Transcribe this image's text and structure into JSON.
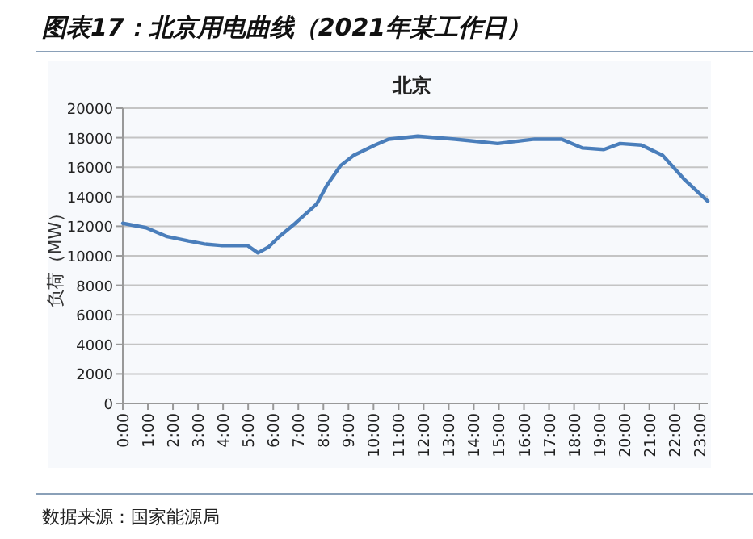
{
  "chart_data": {
    "type": "line",
    "title": "图表17：北京用电曲线（2021年某工作日）",
    "subtitle": "北京",
    "ylabel": "负荷（MW）",
    "x": [
      0,
      0.93,
      1.77,
      2.62,
      3.26,
      3.9,
      4.97,
      5.39,
      5.82,
      6.24,
      6.88,
      7.73,
      8.15,
      8.68,
      9.21,
      10.06,
      10.6,
      11.76,
      13.25,
      14.95,
      16.43,
      17.5,
      18.34,
      19.19,
      19.83,
      20.68,
      21.53,
      22.38,
      23.33
    ],
    "values": [
      12200,
      11900,
      11300,
      11000,
      10800,
      10700,
      10700,
      10200,
      10600,
      11300,
      12200,
      13500,
      14800,
      16100,
      16800,
      17500,
      17900,
      18100,
      17900,
      17600,
      17900,
      17900,
      17300,
      17200,
      17600,
      17500,
      16800,
      15200,
      13700
    ],
    "color": "#4a7ebb",
    "xlim": [
      0,
      23.33
    ],
    "xticks": [
      {
        "value": 0,
        "label": "0:00"
      },
      {
        "value": 1,
        "label": "1:00"
      },
      {
        "value": 2,
        "label": "2:00"
      },
      {
        "value": 3,
        "label": "3:00"
      },
      {
        "value": 4,
        "label": "4:00"
      },
      {
        "value": 5,
        "label": "5:00"
      },
      {
        "value": 6,
        "label": "6:00"
      },
      {
        "value": 7,
        "label": "7:00"
      },
      {
        "value": 8,
        "label": "8:00"
      },
      {
        "value": 9,
        "label": "9:00"
      },
      {
        "value": 10,
        "label": "10:00"
      },
      {
        "value": 11,
        "label": "11:00"
      },
      {
        "value": 12,
        "label": "12:00"
      },
      {
        "value": 13,
        "label": "13:00"
      },
      {
        "value": 14,
        "label": "14:00"
      },
      {
        "value": 15,
        "label": "15:00"
      },
      {
        "value": 16,
        "label": "16:00"
      },
      {
        "value": 17,
        "label": "17:00"
      },
      {
        "value": 18,
        "label": "18:00"
      },
      {
        "value": 19,
        "label": "19:00"
      },
      {
        "value": 20,
        "label": "20:00"
      },
      {
        "value": 21,
        "label": "21:00"
      },
      {
        "value": 22,
        "label": "22:00"
      },
      {
        "value": 23,
        "label": "23:00"
      }
    ],
    "ylim": [
      0,
      20000
    ],
    "yticks": [
      0,
      2000,
      4000,
      6000,
      8000,
      10000,
      12000,
      14000,
      16000,
      18000,
      20000
    ],
    "grid": "y",
    "annotations": [
      "数据来源：国家能源局"
    ]
  }
}
